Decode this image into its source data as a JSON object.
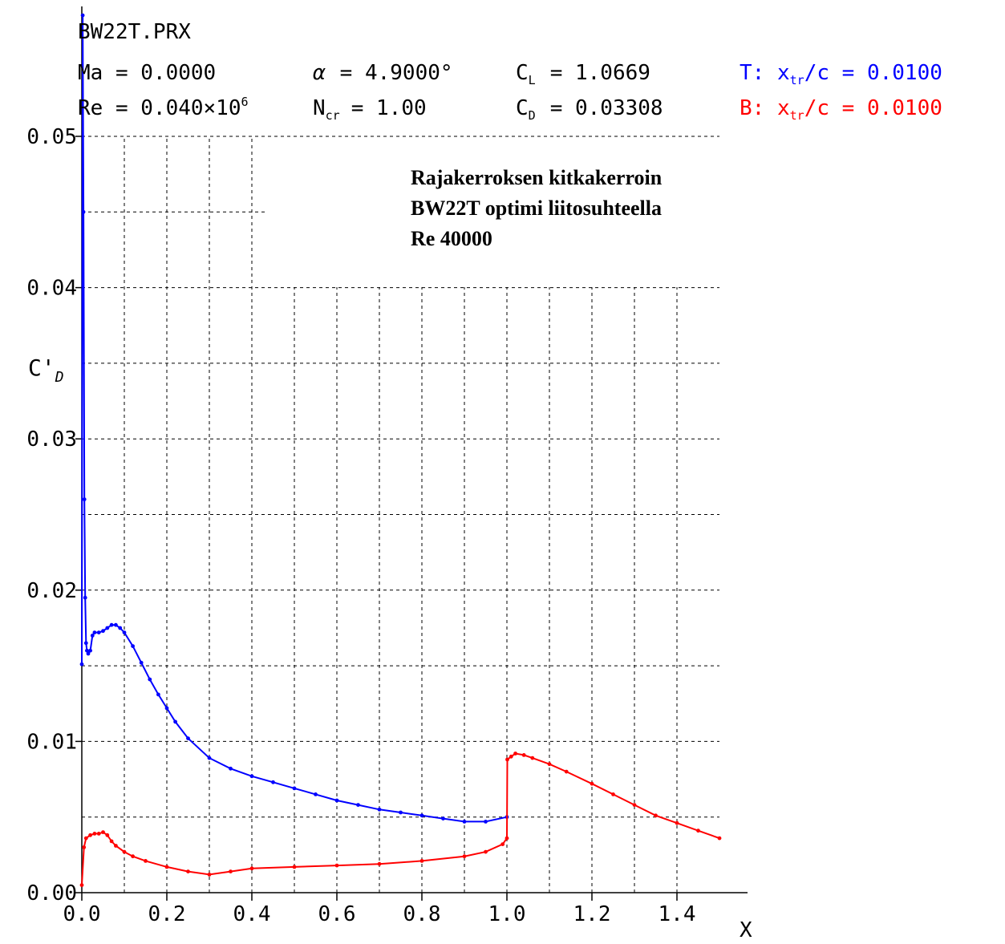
{
  "header": {
    "filename": "BW22T.PRX",
    "ma": "Ma = 0.0000",
    "alpha_symbol": "α",
    "alpha_value": "= 4.9000°",
    "cl_letter": "C",
    "cl_sub": "L",
    "cl_value": "= 1.0669",
    "re_text": "Re = 0.040×10",
    "re_exp": "6",
    "ncr_letter": "N",
    "ncr_sub": "cr",
    "ncr_value": "= 1.00",
    "cd_letter": "C",
    "cd_sub": "D",
    "cd_value": "= 0.03308",
    "top_prefix": "T: x",
    "top_sub": "tr",
    "top_value": "/c = 0.0100",
    "bottom_prefix": "B: x",
    "bottom_sub": "tr",
    "bottom_value": "/c = 0.0100"
  },
  "colors": {
    "top": "#0000ff",
    "bottom": "#ff0000",
    "grid": "#000000",
    "text": "#000000"
  },
  "annotation": {
    "line1": "Rajakerroksen kitkakerroin",
    "line2": "BW22T optimi liitosuhteella",
    "line3": "Re 40000"
  },
  "chart_data": {
    "type": "line",
    "title": "",
    "xlabel": "X",
    "ylabel_main": "C'",
    "ylabel_sub": "D",
    "xlim": [
      0.0,
      1.5
    ],
    "ylim": [
      0.0,
      0.05
    ],
    "x_ticks": [
      "0.0",
      "0.2",
      "0.4",
      "0.6",
      "0.8",
      "1.0",
      "1.2",
      "1.4"
    ],
    "y_ticks": [
      "0.00",
      "0.01",
      "0.02",
      "0.03",
      "0.04",
      "0.05"
    ],
    "grid": true,
    "series": [
      {
        "name": "T",
        "x": [
          0.0,
          0.002,
          0.004,
          0.006,
          0.008,
          0.01,
          0.012,
          0.015,
          0.02,
          0.025,
          0.03,
          0.04,
          0.05,
          0.06,
          0.07,
          0.08,
          0.09,
          0.1,
          0.12,
          0.14,
          0.16,
          0.18,
          0.2,
          0.22,
          0.25,
          0.3,
          0.35,
          0.4,
          0.45,
          0.5,
          0.55,
          0.6,
          0.65,
          0.7,
          0.75,
          0.8,
          0.85,
          0.9,
          0.95,
          1.0
        ],
        "y": [
          0.0151,
          0.058,
          0.045,
          0.026,
          0.0195,
          0.0165,
          0.016,
          0.0158,
          0.016,
          0.017,
          0.0172,
          0.0172,
          0.0173,
          0.0175,
          0.0177,
          0.0177,
          0.0175,
          0.0172,
          0.0163,
          0.0152,
          0.0141,
          0.0131,
          0.0122,
          0.0113,
          0.0102,
          0.0089,
          0.0082,
          0.0077,
          0.0073,
          0.0069,
          0.0065,
          0.0061,
          0.0058,
          0.0055,
          0.0053,
          0.0051,
          0.0049,
          0.0047,
          0.0047,
          0.005
        ]
      },
      {
        "name": "B",
        "x": [
          0.0,
          0.005,
          0.01,
          0.02,
          0.03,
          0.04,
          0.05,
          0.06,
          0.07,
          0.08,
          0.1,
          0.12,
          0.15,
          0.2,
          0.25,
          0.3,
          0.35,
          0.4,
          0.5,
          0.6,
          0.7,
          0.8,
          0.9,
          0.95,
          0.99,
          1.0,
          1.001,
          1.01,
          1.02,
          1.04,
          1.06,
          1.1,
          1.14,
          1.2,
          1.25,
          1.3,
          1.35,
          1.4,
          1.45,
          1.5
        ],
        "y": [
          0.0005,
          0.003,
          0.0036,
          0.0038,
          0.0039,
          0.0039,
          0.004,
          0.0038,
          0.0034,
          0.0031,
          0.0027,
          0.0024,
          0.0021,
          0.0017,
          0.0014,
          0.0012,
          0.0014,
          0.0016,
          0.0017,
          0.0018,
          0.0019,
          0.0021,
          0.0024,
          0.0027,
          0.0032,
          0.0036,
          0.0088,
          0.009,
          0.0092,
          0.0091,
          0.0089,
          0.0085,
          0.008,
          0.0072,
          0.0065,
          0.0058,
          0.0051,
          0.0046,
          0.0041,
          0.0036
        ]
      }
    ]
  }
}
